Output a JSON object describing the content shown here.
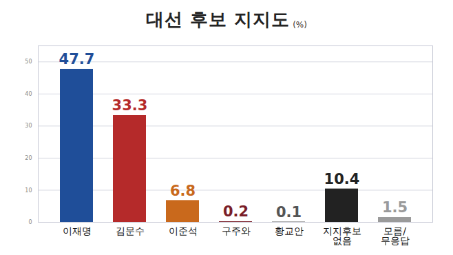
{
  "chart_data": {
    "type": "bar",
    "title": "대선 후보 지지도",
    "subtitle": "(%)",
    "categories": [
      "이재명",
      "김문수",
      "이준석",
      "구주와",
      "황교안",
      "지지후보\n없음",
      "모름/\n무응답"
    ],
    "values": [
      47.7,
      33.3,
      6.8,
      0.2,
      0.1,
      10.4,
      1.5
    ],
    "colors": [
      "#1f4e99",
      "#b52a2a",
      "#c9691c",
      "#7a1e28",
      "#555555",
      "#222222",
      "#9a9a9a"
    ],
    "ylim": [
      0,
      55
    ],
    "yticks": [
      0,
      10,
      20,
      30,
      40,
      50
    ],
    "grid": true,
    "data_labels": true
  }
}
